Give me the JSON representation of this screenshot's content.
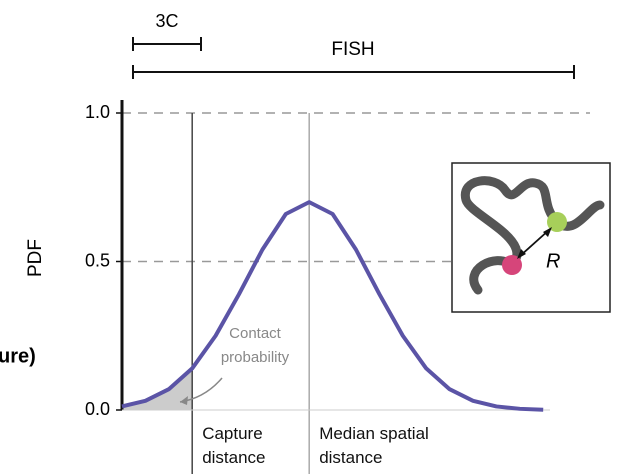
{
  "chart_data": {
    "type": "line",
    "y_label": "PDF",
    "x": [
      0,
      0.5,
      1,
      1.5,
      2,
      2.5,
      3,
      3.5,
      4,
      4.5,
      5,
      5.5,
      6,
      6.5,
      7,
      7.5,
      8,
      8.5,
      9
    ],
    "series": [
      {
        "color": "#5b54a6",
        "values": [
          0.012,
          0.031,
          0.07,
          0.14,
          0.25,
          0.39,
          0.54,
          0.66,
          0.7,
          0.66,
          0.54,
          0.39,
          0.25,
          0.14,
          0.07,
          0.031,
          0.012,
          0.004,
          0.001
        ]
      }
    ],
    "shade_color": "#cccccc",
    "shade_until_x": 1.5,
    "xlim": [
      0,
      10
    ],
    "ylim": [
      0,
      1
    ],
    "yticks": [
      {
        "value": 0,
        "label": "0.0"
      },
      {
        "value": 0.5,
        "label": "0.5"
      },
      {
        "value": 1,
        "label": "1.0"
      }
    ],
    "grid": true,
    "annotations": [
      {
        "text": "Capture distance",
        "x": 1.5
      },
      {
        "text": "Median spatial distance",
        "x": 4
      }
    ],
    "callout": "Contact probability",
    "scales": {
      "short": "3C",
      "long": "FISH"
    },
    "inset_label": "R",
    "cropped_text": "ure)"
  }
}
